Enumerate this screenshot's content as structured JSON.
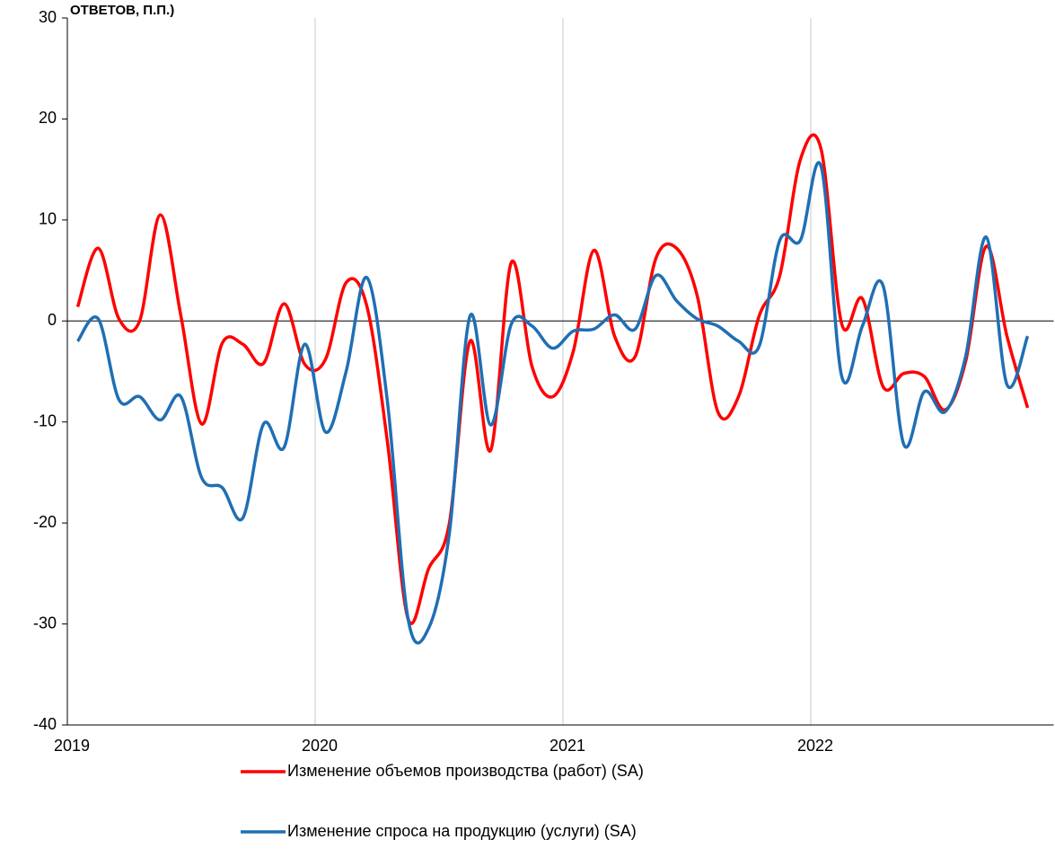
{
  "chart_data": {
    "type": "line",
    "title": "ОТВЕТОВ, П.П.)",
    "x": [
      2019.0417,
      2019.125,
      2019.2083,
      2019.2917,
      2019.375,
      2019.4583,
      2019.5417,
      2019.625,
      2019.7083,
      2019.7917,
      2019.875,
      2019.9583,
      2020.0417,
      2020.125,
      2020.2083,
      2020.2917,
      2020.375,
      2020.4583,
      2020.5417,
      2020.625,
      2020.7083,
      2020.7917,
      2020.875,
      2020.9583,
      2021.0417,
      2021.125,
      2021.2083,
      2021.2917,
      2021.375,
      2021.4583,
      2021.5417,
      2021.625,
      2021.7083,
      2021.7917,
      2021.875,
      2021.9583,
      2022.0417,
      2022.125,
      2022.2083,
      2022.2917,
      2022.375,
      2022.4583,
      2022.5417,
      2022.625,
      2022.7083,
      2022.7917,
      2022.875
    ],
    "series": [
      {
        "name": "Изменение объемов производства (работ) (SA)",
        "color": "#ff0000",
        "values": [
          1.4,
          7.2,
          0.2,
          0,
          10.5,
          0.5,
          -10.2,
          -2.2,
          -2.3,
          -4.2,
          1.7,
          -4.3,
          -3.8,
          3.8,
          1.5,
          -12,
          -29.5,
          -24.5,
          -20,
          -2,
          -12.8,
          5.8,
          -4.5,
          -7.5,
          -3,
          7,
          -1.5,
          -3.5,
          6.2,
          7.2,
          2.5,
          -9,
          -7.5,
          0.5,
          4.5,
          16,
          17,
          -0.3,
          2.2,
          -6.5,
          -5.2,
          -5.5,
          -8.8,
          -4,
          7.4,
          -1.5,
          -8.6
        ]
      },
      {
        "name": "Изменение спроса на продукцию (услуги) (SA)",
        "color": "#1f6fb4",
        "values": [
          -2,
          0.2,
          -7.8,
          -7.5,
          -9.8,
          -7.5,
          -15.5,
          -16.5,
          -19.5,
          -10.2,
          -12.5,
          -2.3,
          -11,
          -5,
          4.3,
          -8,
          -29.5,
          -30.4,
          -21,
          0.5,
          -10.3,
          -0.3,
          -0.5,
          -2.7,
          -1,
          -0.8,
          0.6,
          -0.8,
          4.5,
          2,
          0.2,
          -0.5,
          -2,
          -2.5,
          8,
          8,
          15.3,
          -5.5,
          -0.5,
          3.5,
          -12.2,
          -7,
          -9,
          -3.5,
          8.3,
          -6.3,
          -1.5
        ]
      }
    ],
    "xlim": [
      2019,
      2022.98
    ],
    "xticks": [
      2019,
      2020,
      2021,
      2022
    ],
    "ylim": [
      -40,
      30
    ],
    "yticks": [
      -40,
      -30,
      -20,
      -10,
      0,
      10,
      20,
      30
    ],
    "grid": true,
    "legend": "bottom"
  }
}
